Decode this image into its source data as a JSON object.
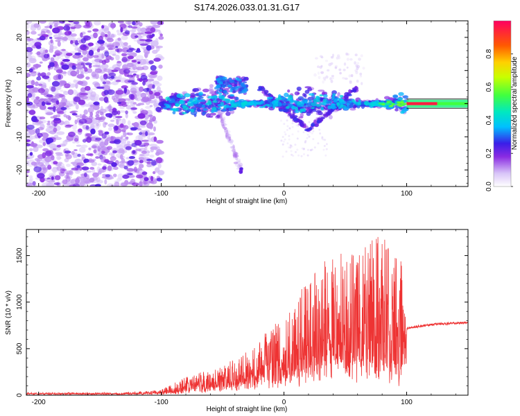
{
  "chart_data": [
    {
      "type": "heatmap",
      "title": "S174.2026.033.01.31.G17",
      "xlabel": "Height of straight line (km)",
      "ylabel": "Frequency (Hz)",
      "xlim": [
        -210,
        150
      ],
      "ylim": [
        -25,
        25
      ],
      "xticks": [
        -200,
        -100,
        0,
        100
      ],
      "yticks": [
        -20,
        -10,
        0,
        10,
        20
      ],
      "colorbar": {
        "label": "Normalized spectral amplitude",
        "range": [
          0,
          1
        ],
        "ticks": [
          0.0,
          0.2,
          0.4,
          0.6,
          0.8
        ]
      },
      "features": [
        {
          "name": "noise",
          "x_range": [
            -210,
            -100
          ],
          "f_range": [
            -25,
            25
          ],
          "amplitude": 0.08
        },
        {
          "name": "main-track",
          "x_range": [
            -100,
            100
          ],
          "f_center": 0,
          "spread_hz": 6,
          "amplitude": 0.25
        },
        {
          "name": "descending-branch",
          "x_range": [
            -60,
            -35
          ],
          "f_range": [
            5,
            -20
          ],
          "amplitude": 0.12
        },
        {
          "name": "v-branch",
          "x_range": [
            -20,
            60
          ],
          "f_range": [
            5,
            -8
          ],
          "amplitude": 0.22
        },
        {
          "name": "steady-line",
          "x_range": [
            100,
            150
          ],
          "f_center": 0,
          "amplitude": 0.95
        }
      ]
    },
    {
      "type": "line",
      "xlabel": "Height of straight line (km)",
      "ylabel": "SNR (10 * v/v)",
      "xlim": [
        -210,
        150
      ],
      "ylim": [
        0,
        1780
      ],
      "xticks": [
        -200,
        -100,
        0,
        100
      ],
      "yticks": [
        0,
        500,
        1000,
        1500
      ],
      "series": [
        {
          "name": "SNR",
          "color": "#ee3333",
          "envelope_x": [
            -210,
            -130,
            -100,
            -80,
            -60,
            -40,
            -20,
            0,
            20,
            40,
            60,
            80,
            95,
            100,
            120,
            150
          ],
          "envelope_base": [
            15,
            15,
            20,
            50,
            90,
            140,
            200,
            250,
            320,
            380,
            400,
            380,
            300,
            720,
            760,
            780
          ],
          "envelope_peak": [
            30,
            30,
            60,
            200,
            280,
            400,
            600,
            900,
            1250,
            1550,
            1600,
            1780,
            1550,
            740,
            780,
            800
          ]
        }
      ]
    }
  ]
}
